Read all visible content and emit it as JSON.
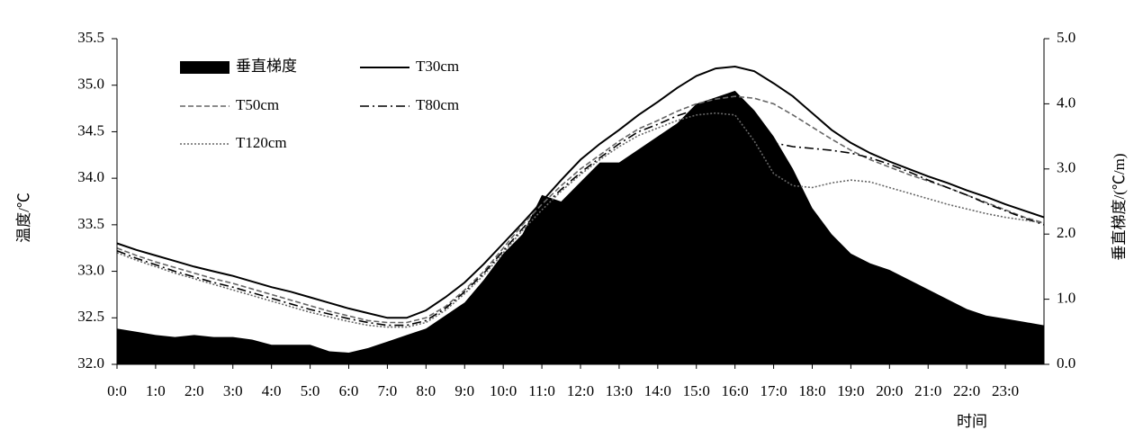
{
  "chart_data": {
    "type": "line",
    "ylabel": "温度/℃",
    "y2label": "垂直梯度/(℃/m)",
    "xlabel": "时间",
    "x": [
      0,
      0.5,
      1,
      1.5,
      2,
      2.5,
      3,
      3.5,
      4,
      4.5,
      5,
      5.5,
      6,
      6.5,
      7,
      7.5,
      8,
      8.5,
      9,
      9.5,
      10,
      10.5,
      11,
      11.5,
      12,
      12.5,
      13,
      13.5,
      14,
      14.5,
      15,
      15.5,
      16,
      16.5,
      17,
      17.5,
      18,
      18.5,
      19,
      19.5,
      20,
      20.5,
      21,
      21.5,
      22,
      22.5,
      23,
      23.5,
      24
    ],
    "xlim": [
      0,
      24
    ],
    "xticks": [
      {
        "value": 0,
        "label": "0:0"
      },
      {
        "value": 1,
        "label": "1:0"
      },
      {
        "value": 2,
        "label": "2:0"
      },
      {
        "value": 3,
        "label": "3:0"
      },
      {
        "value": 4,
        "label": "4:0"
      },
      {
        "value": 5,
        "label": "5:0"
      },
      {
        "value": 6,
        "label": "6:0"
      },
      {
        "value": 7,
        "label": "7:0"
      },
      {
        "value": 8,
        "label": "8:0"
      },
      {
        "value": 9,
        "label": "9:0"
      },
      {
        "value": 10,
        "label": "10:0"
      },
      {
        "value": 11,
        "label": "11:0"
      },
      {
        "value": 12,
        "label": "12:0"
      },
      {
        "value": 13,
        "label": "13:0"
      },
      {
        "value": 14,
        "label": "14:0"
      },
      {
        "value": 15,
        "label": "15:0"
      },
      {
        "value": 16,
        "label": "16:0"
      },
      {
        "value": 17,
        "label": "17:0"
      },
      {
        "value": 18,
        "label": "18:0"
      },
      {
        "value": 19,
        "label": "19:0"
      },
      {
        "value": 20,
        "label": "20:0"
      },
      {
        "value": 21,
        "label": "21:0"
      },
      {
        "value": 22,
        "label": "22:0"
      },
      {
        "value": 23,
        "label": "23:0"
      }
    ],
    "ylim": [
      32,
      35.5
    ],
    "yticks": [
      {
        "value": 32,
        "label": "32.0"
      },
      32.5,
      {
        "value": 33,
        "label": "33.0"
      },
      33.5,
      {
        "value": 34,
        "label": "34.0"
      },
      34.5,
      {
        "value": 35,
        "label": "35.0"
      },
      35.5
    ],
    "y2lim": [
      0,
      5
    ],
    "y2ticks": [
      {
        "value": 0,
        "label": "0.0"
      },
      {
        "value": 1,
        "label": "1.0"
      },
      {
        "value": 2,
        "label": "2.0"
      },
      {
        "value": 3,
        "label": "3.0"
      },
      {
        "value": 4,
        "label": "4.0"
      },
      {
        "value": 5,
        "label": "5.0"
      }
    ],
    "series": [
      {
        "name": "垂直梯度",
        "kind": "area",
        "axis": "y2",
        "color": "#000000",
        "values": [
          0.55,
          0.5,
          0.45,
          0.42,
          0.45,
          0.42,
          0.42,
          0.38,
          0.3,
          0.3,
          0.3,
          0.2,
          0.18,
          0.25,
          0.35,
          0.45,
          0.55,
          0.75,
          0.95,
          1.3,
          1.7,
          2.0,
          2.6,
          2.5,
          2.8,
          3.1,
          3.1,
          3.3,
          3.5,
          3.7,
          4.0,
          4.1,
          4.2,
          3.9,
          3.5,
          3.0,
          2.4,
          2.0,
          1.7,
          1.55,
          1.45,
          1.3,
          1.15,
          1.0,
          0.85,
          0.75,
          0.7,
          0.65,
          0.6
        ]
      },
      {
        "name": "T30cm",
        "kind": "line",
        "line_style": "solid",
        "color": "#000000",
        "values": [
          33.3,
          33.23,
          33.17,
          33.11,
          33.05,
          33.0,
          32.95,
          32.89,
          32.83,
          32.78,
          32.72,
          32.66,
          32.6,
          32.55,
          32.5,
          32.5,
          32.58,
          32.72,
          32.88,
          33.08,
          33.3,
          33.52,
          33.75,
          33.98,
          34.2,
          34.37,
          34.52,
          34.68,
          34.82,
          34.97,
          35.1,
          35.18,
          35.2,
          35.15,
          35.02,
          34.88,
          34.7,
          34.52,
          34.38,
          34.27,
          34.18,
          34.1,
          34.02,
          33.95,
          33.87,
          33.8,
          33.72,
          33.65,
          33.58
        ]
      },
      {
        "name": "T50cm",
        "kind": "line",
        "line_style": "dashed",
        "color": "#666666",
        "values": [
          33.25,
          33.17,
          33.1,
          33.04,
          32.98,
          32.92,
          32.87,
          32.81,
          32.75,
          32.69,
          32.63,
          32.57,
          32.52,
          32.47,
          32.45,
          32.45,
          32.5,
          32.62,
          32.8,
          33.0,
          33.25,
          33.5,
          33.72,
          33.92,
          34.1,
          34.25,
          34.4,
          34.53,
          34.62,
          34.72,
          34.8,
          34.85,
          34.88,
          34.86,
          34.8,
          34.68,
          34.55,
          34.42,
          34.3,
          34.2,
          34.12,
          34.04,
          33.97,
          33.9,
          33.82,
          33.74,
          33.66,
          33.58,
          33.52
        ]
      },
      {
        "name": "T80cm",
        "kind": "line",
        "line_style": "dashdot",
        "color": "#000000",
        "values": [
          33.22,
          33.14,
          33.07,
          33.0,
          32.94,
          32.88,
          32.83,
          32.77,
          32.71,
          32.65,
          32.59,
          32.54,
          32.49,
          32.45,
          32.42,
          32.42,
          32.47,
          32.6,
          32.78,
          32.98,
          33.22,
          33.46,
          33.68,
          33.88,
          34.06,
          34.22,
          34.37,
          34.5,
          34.58,
          34.67,
          34.74,
          34.78,
          34.78,
          34.6,
          34.38,
          34.34,
          34.32,
          34.3,
          34.27,
          34.22,
          34.15,
          34.07,
          33.98,
          33.9,
          33.82,
          33.73,
          33.65,
          33.57,
          33.5
        ]
      },
      {
        "name": "T120cm",
        "kind": "line",
        "line_style": "dotted",
        "color": "#666666",
        "values": [
          33.2,
          33.12,
          33.05,
          32.98,
          32.92,
          32.86,
          32.8,
          32.74,
          32.68,
          32.62,
          32.56,
          32.51,
          32.46,
          32.42,
          32.4,
          32.4,
          32.45,
          32.58,
          32.76,
          32.96,
          33.2,
          33.44,
          33.66,
          33.86,
          34.04,
          34.2,
          34.34,
          34.46,
          34.54,
          34.62,
          34.68,
          34.7,
          34.68,
          34.4,
          34.05,
          33.92,
          33.9,
          33.95,
          33.98,
          33.96,
          33.9,
          33.84,
          33.78,
          33.72,
          33.67,
          33.62,
          33.58,
          33.55,
          33.52
        ]
      }
    ]
  }
}
